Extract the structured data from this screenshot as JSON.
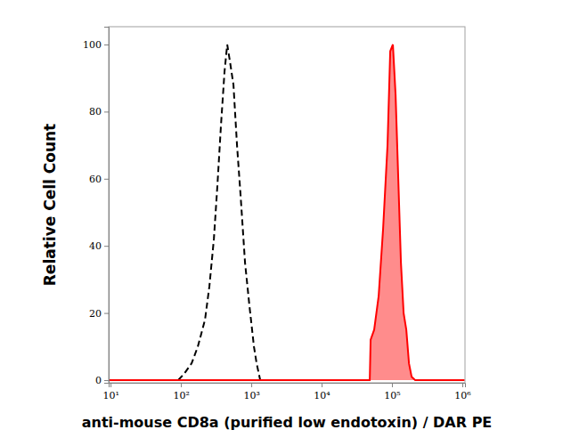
{
  "chart_data": {
    "type": "line",
    "x_label": "anti-mouse CD8a (purified low endotoxin) / DAR PE",
    "y_label": "Relative Cell Count",
    "log": "x",
    "grid": false,
    "xlim": [
      9.4,
      1090000
    ],
    "ylim": [
      -0.8,
      105.3
    ],
    "xticks": [
      {
        "value": 10,
        "label": "10¹"
      },
      {
        "value": 100,
        "label": "10²"
      },
      {
        "value": 1000,
        "label": "10³"
      },
      {
        "value": 10000,
        "label": "10⁴"
      },
      {
        "value": 100000,
        "label": "10⁵"
      },
      {
        "value": 1000000,
        "label": "10⁶"
      }
    ],
    "yticks": [
      0,
      20,
      40,
      60,
      80,
      100
    ],
    "series": [
      {
        "type": "line",
        "color": "#000000",
        "line_style": "dashed",
        "x": [
          91.6,
          112,
          142,
          174,
          220,
          254,
          294,
          330,
          371,
          417,
          455,
          497,
          558,
          627,
          705,
          815,
          943,
          1091,
          1191,
          1339,
          1504
        ],
        "values": [
          0,
          2,
          5,
          10,
          18,
          28,
          42,
          58,
          76,
          92,
          100,
          95,
          88,
          70,
          55,
          35,
          22,
          10,
          5,
          0,
          0
        ]
      },
      {
        "type": "area",
        "color": "#ff0000",
        "line_style": "solid",
        "x": [
          9.5,
          41700,
          48300,
          49700,
          55800,
          64600,
          74700,
          86400,
          94400,
          103000,
          112500,
          122800,
          134000,
          146300,
          159700,
          174300,
          190000,
          213500,
          1080000
        ],
        "values": [
          0,
          0,
          0,
          12,
          15,
          25,
          45,
          70,
          98,
          100,
          85,
          60,
          35,
          20,
          15,
          5,
          1,
          0,
          0
        ]
      }
    ]
  }
}
